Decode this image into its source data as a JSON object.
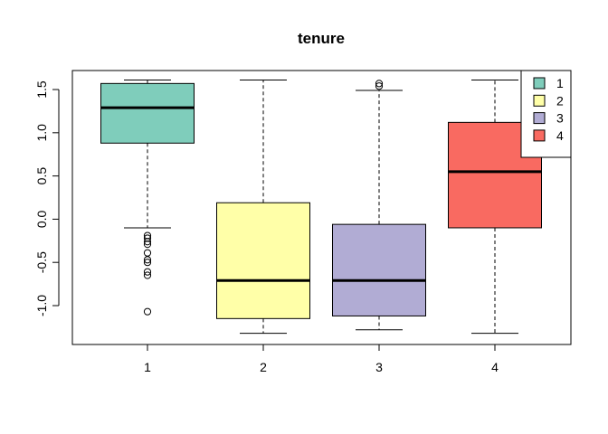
{
  "chart_data": {
    "type": "boxplot",
    "title": "tenure",
    "xlabel": "",
    "ylabel": "",
    "categories": [
      "1",
      "2",
      "3",
      "4"
    ],
    "y_ticks": [
      "-1.0",
      "-0.5",
      "0.0",
      "0.5",
      "1.0",
      "1.5"
    ],
    "ylim": [
      -1.45,
      1.72
    ],
    "grid": false,
    "legend_position": "top-right",
    "colors": [
      "#7fcdbb",
      "#ffffa8",
      "#b1acd4",
      "#f96a61"
    ],
    "boxes": [
      {
        "name": "1",
        "whisker_low": -0.1,
        "q1": 0.88,
        "median": 1.29,
        "q3": 1.57,
        "whisker_high": 1.61,
        "outliers": [
          -0.19,
          -0.22,
          -0.26,
          -0.29,
          -0.39,
          -0.47,
          -0.5,
          -0.61,
          -0.65,
          -1.07
        ]
      },
      {
        "name": "2",
        "whisker_low": -1.32,
        "q1": -1.15,
        "median": -0.71,
        "q3": 0.19,
        "whisker_high": 1.61,
        "outliers": []
      },
      {
        "name": "3",
        "whisker_low": -1.28,
        "q1": -1.12,
        "median": -0.71,
        "q3": -0.06,
        "whisker_high": 1.49,
        "outliers": [
          1.54,
          1.57
        ]
      },
      {
        "name": "4",
        "whisker_low": -1.32,
        "q1": -0.1,
        "median": 0.55,
        "q3": 1.12,
        "whisker_high": 1.61,
        "outliers": []
      }
    ],
    "legend": [
      "1",
      "2",
      "3",
      "4"
    ]
  }
}
